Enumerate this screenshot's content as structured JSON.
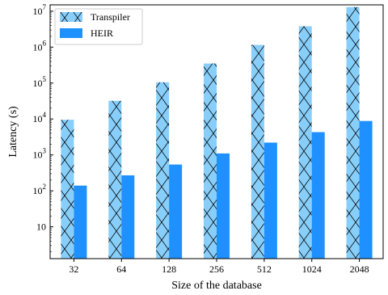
{
  "chart_data": {
    "type": "bar",
    "categories": [
      "32",
      "64",
      "128",
      "256",
      "512",
      "1024",
      "2048"
    ],
    "series": [
      {
        "name": "Transpiler",
        "values": [
          9500,
          32000,
          105000,
          350000,
          1150000,
          3800000,
          13000000
        ],
        "color": "#87cefa",
        "hatch": "x"
      },
      {
        "name": "HEIR",
        "values": [
          140,
          270,
          540,
          1100,
          2200,
          4300,
          8800
        ],
        "color": "#1e90ff"
      }
    ],
    "xlabel": "Size of the database",
    "ylabel": "Latency (s)",
    "yscale": "log",
    "ylim": [
      1.3,
      15000000
    ],
    "yticks": [
      {
        "value": 10,
        "base": "10",
        "exp": ""
      },
      {
        "value": 100,
        "base": "10",
        "exp": "2"
      },
      {
        "value": 1000,
        "base": "10",
        "exp": "3"
      },
      {
        "value": 10000,
        "base": "10",
        "exp": "4"
      },
      {
        "value": 100000,
        "base": "10",
        "exp": "5"
      },
      {
        "value": 1000000,
        "base": "10",
        "exp": "6"
      },
      {
        "value": 10000000,
        "base": "10",
        "exp": "7"
      }
    ],
    "grid": false,
    "legend": "top-left"
  }
}
